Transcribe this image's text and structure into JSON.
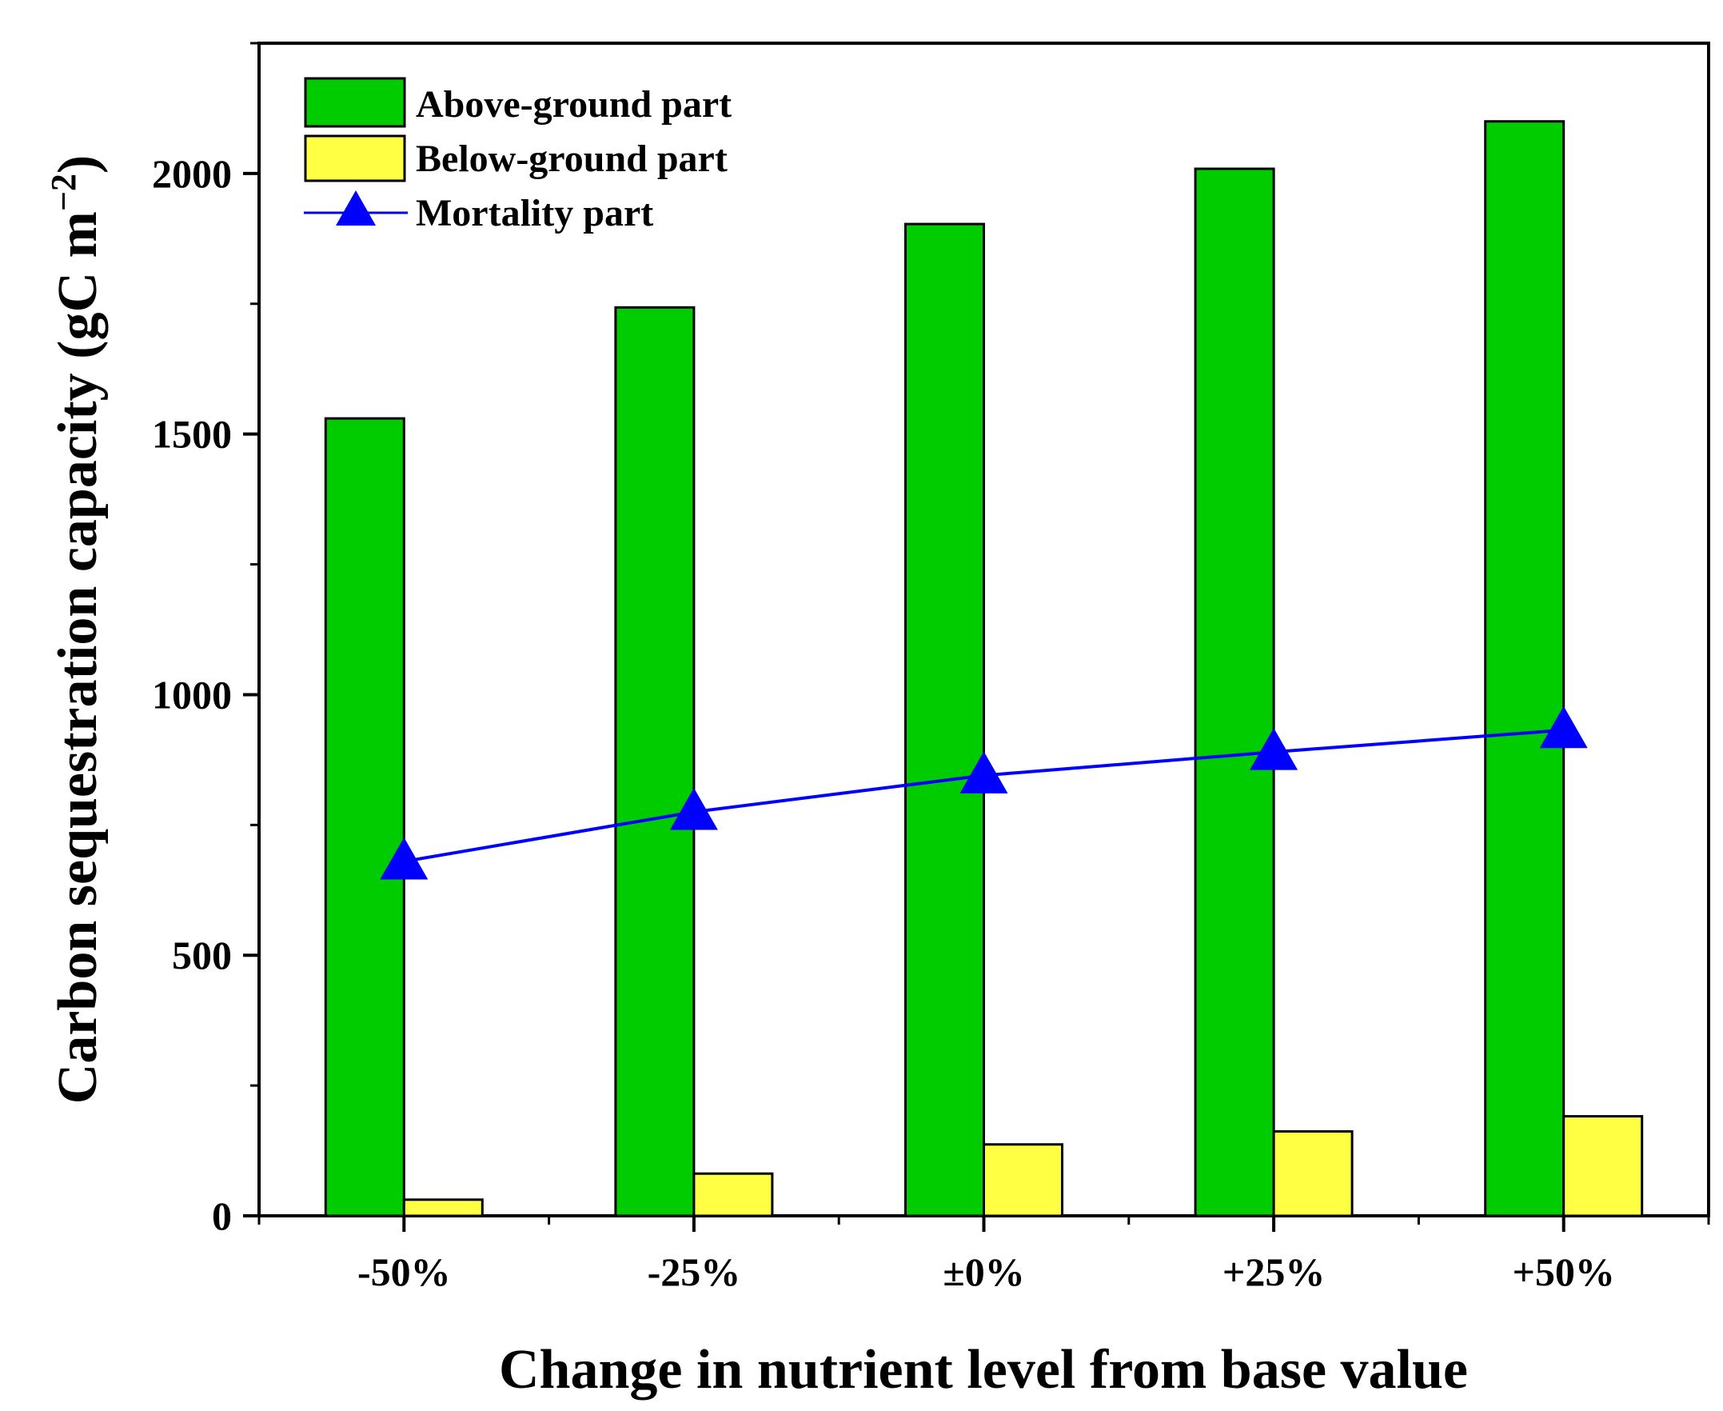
{
  "chart_data": {
    "type": "bar",
    "title": "",
    "xlabel": "Change in nutrient level from base value",
    "ylabel_main": "Carbon sequestration capacity (gC m",
    "ylabel_sup": "−2",
    "ylabel_close": ")",
    "ylim": [
      0,
      2250
    ],
    "yticks": [
      0,
      500,
      1000,
      1500,
      2000
    ],
    "ytick_labels": [
      "0",
      "500",
      "1000",
      "1500",
      "2000"
    ],
    "categories": [
      "-50%",
      "-25%",
      "±0%",
      "+25%",
      "+50%"
    ],
    "series": [
      {
        "name": "Above-ground part",
        "kind": "bar",
        "color": "#00cc00",
        "values": [
          1530,
          1743,
          1903,
          2009,
          2100
        ]
      },
      {
        "name": "Below-ground part",
        "kind": "bar",
        "color": "#ffff44",
        "values": [
          31,
          81,
          137,
          162,
          191
        ]
      },
      {
        "name": "Mortality part",
        "kind": "line",
        "color": "#0000ff",
        "values": [
          680,
          775,
          845,
          890,
          932
        ]
      }
    ],
    "legend_position": "top-left",
    "grid": false
  }
}
